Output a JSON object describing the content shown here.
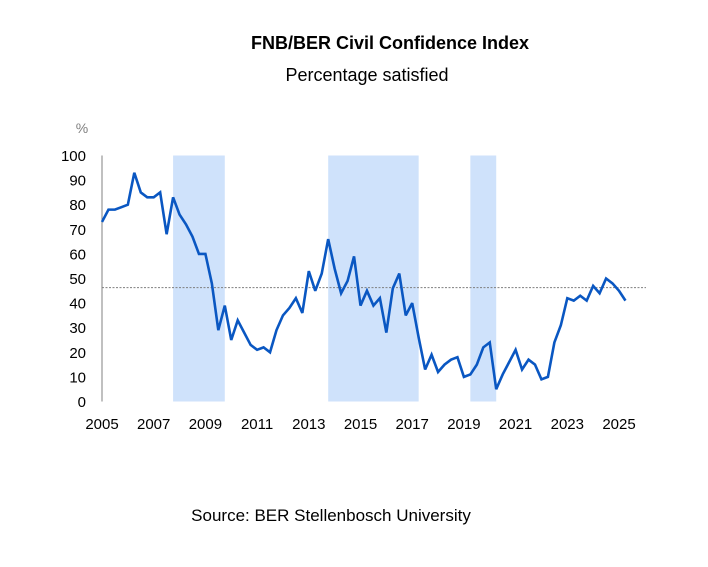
{
  "chart_data": {
    "type": "line",
    "title": "FNB/BER Civil Confidence Index",
    "subtitle": "Percentage satisfied",
    "ylabel": "%",
    "xlabel": "",
    "source": "Source: BER Stellenbosch University",
    "xlim": [
      2005,
      2025.75
    ],
    "ylim": [
      0,
      100
    ],
    "yticks": [
      0,
      10,
      20,
      30,
      40,
      50,
      60,
      70,
      80,
      90,
      100
    ],
    "xticks": [
      2005,
      2007,
      2009,
      2011,
      2013,
      2015,
      2017,
      2019,
      2021,
      2023,
      2025
    ],
    "grid": false,
    "reference_line": {
      "value": 46.3,
      "style": "dotted",
      "color": "#7f7f7f"
    },
    "shaded_periods": [
      {
        "start": 2007.75,
        "end": 2009.75
      },
      {
        "start": 2013.75,
        "end": 2017.25
      },
      {
        "start": 2019.25,
        "end": 2020.25
      }
    ],
    "colors": {
      "line": "#0a57c2",
      "shade": "#cfe2fb",
      "axis": "#808080"
    },
    "series": [
      {
        "name": "Civil Confidence Index",
        "x_start": 2005,
        "x_step": 0.25,
        "values": [
          73,
          78,
          78,
          79,
          80,
          93,
          85,
          83,
          83,
          85,
          68,
          83,
          76,
          72,
          67,
          60,
          60,
          48,
          29,
          39,
          25,
          33,
          28,
          23,
          21,
          22,
          20,
          29,
          35,
          38,
          42,
          36,
          53,
          45,
          52,
          66,
          54,
          44,
          49,
          59,
          39,
          45,
          39,
          42,
          28,
          46,
          52,
          35,
          40,
          26,
          13,
          19,
          12,
          15,
          17,
          18,
          10,
          11,
          15,
          22,
          24,
          5,
          11,
          16,
          21,
          13,
          17,
          15,
          9,
          10,
          24,
          31,
          42,
          41,
          43,
          41,
          47,
          44,
          50,
          48,
          45,
          41
        ]
      }
    ]
  }
}
